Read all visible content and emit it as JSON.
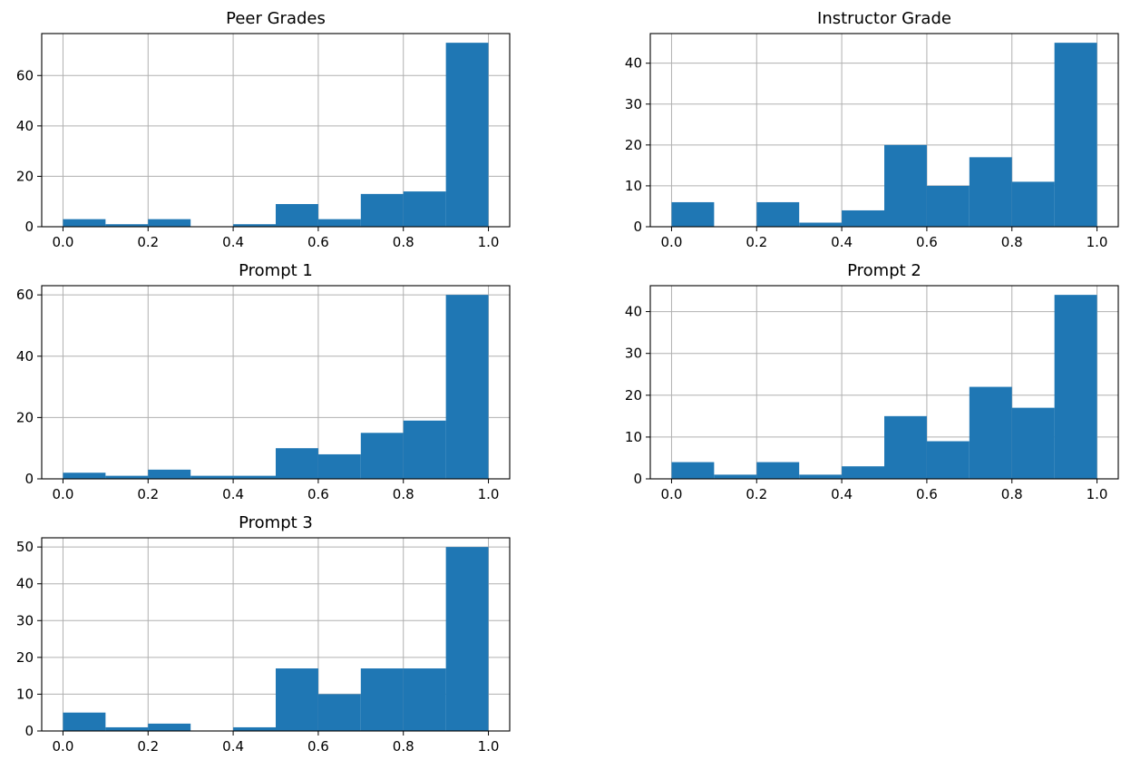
{
  "chart_data": [
    {
      "type": "bar",
      "title": "Peer Grades",
      "bin_edges": [
        0.0,
        0.1,
        0.2,
        0.3,
        0.4,
        0.5,
        0.6,
        0.7,
        0.8,
        0.9,
        1.0
      ],
      "values": [
        3,
        1,
        3,
        0,
        1,
        9,
        3,
        13,
        14,
        73
      ],
      "xlim": [
        -0.05,
        1.05
      ],
      "ylim": [
        0,
        76.65
      ],
      "xticks": [
        0.0,
        0.2,
        0.4,
        0.6,
        0.8,
        1.0
      ],
      "xtick_labels": [
        "0.0",
        "0.2",
        "0.4",
        "0.6",
        "0.8",
        "1.0"
      ],
      "yticks": [
        0,
        20,
        40,
        60
      ],
      "ytick_labels": [
        "0",
        "20",
        "40",
        "60"
      ],
      "grid": true,
      "color": "#1f77b4"
    },
    {
      "type": "bar",
      "title": "Instructor Grade",
      "bin_edges": [
        0.0,
        0.1,
        0.2,
        0.3,
        0.4,
        0.5,
        0.6,
        0.7,
        0.8,
        0.9,
        1.0
      ],
      "values": [
        6,
        0,
        6,
        1,
        4,
        20,
        10,
        17,
        11,
        45
      ],
      "xlim": [
        -0.05,
        1.05
      ],
      "ylim": [
        0,
        47.25
      ],
      "xticks": [
        0.0,
        0.2,
        0.4,
        0.6,
        0.8,
        1.0
      ],
      "xtick_labels": [
        "0.0",
        "0.2",
        "0.4",
        "0.6",
        "0.8",
        "1.0"
      ],
      "yticks": [
        0,
        10,
        20,
        30,
        40
      ],
      "ytick_labels": [
        "0",
        "10",
        "20",
        "30",
        "40"
      ],
      "grid": true,
      "color": "#1f77b4"
    },
    {
      "type": "bar",
      "title": "Prompt 1",
      "bin_edges": [
        0.0,
        0.1,
        0.2,
        0.3,
        0.4,
        0.5,
        0.6,
        0.7,
        0.8,
        0.9,
        1.0
      ],
      "values": [
        2,
        1,
        3,
        1,
        1,
        10,
        8,
        15,
        19,
        60
      ],
      "xlim": [
        -0.05,
        1.05
      ],
      "ylim": [
        0,
        63
      ],
      "xticks": [
        0.0,
        0.2,
        0.4,
        0.6,
        0.8,
        1.0
      ],
      "xtick_labels": [
        "0.0",
        "0.2",
        "0.4",
        "0.6",
        "0.8",
        "1.0"
      ],
      "yticks": [
        0,
        20,
        40,
        60
      ],
      "ytick_labels": [
        "0",
        "20",
        "40",
        "60"
      ],
      "grid": true,
      "color": "#1f77b4"
    },
    {
      "type": "bar",
      "title": "Prompt 2",
      "bin_edges": [
        0.0,
        0.1,
        0.2,
        0.3,
        0.4,
        0.5,
        0.6,
        0.7,
        0.8,
        0.9,
        1.0
      ],
      "values": [
        4,
        1,
        4,
        1,
        3,
        15,
        9,
        22,
        17,
        44
      ],
      "xlim": [
        -0.05,
        1.05
      ],
      "ylim": [
        0,
        46.2
      ],
      "xticks": [
        0.0,
        0.2,
        0.4,
        0.6,
        0.8,
        1.0
      ],
      "xtick_labels": [
        "0.0",
        "0.2",
        "0.4",
        "0.6",
        "0.8",
        "1.0"
      ],
      "yticks": [
        0,
        10,
        20,
        30,
        40
      ],
      "ytick_labels": [
        "0",
        "10",
        "20",
        "30",
        "40"
      ],
      "grid": true,
      "color": "#1f77b4"
    },
    {
      "type": "bar",
      "title": "Prompt 3",
      "bin_edges": [
        0.0,
        0.1,
        0.2,
        0.3,
        0.4,
        0.5,
        0.6,
        0.7,
        0.8,
        0.9,
        1.0
      ],
      "values": [
        5,
        1,
        2,
        0,
        1,
        17,
        10,
        17,
        17,
        50
      ],
      "xlim": [
        -0.05,
        1.05
      ],
      "ylim": [
        0,
        52.5
      ],
      "xticks": [
        0.0,
        0.2,
        0.4,
        0.6,
        0.8,
        1.0
      ],
      "xtick_labels": [
        "0.0",
        "0.2",
        "0.4",
        "0.6",
        "0.8",
        "1.0"
      ],
      "yticks": [
        0,
        10,
        20,
        30,
        40,
        50
      ],
      "ytick_labels": [
        "0",
        "10",
        "20",
        "30",
        "40",
        "50"
      ],
      "grid": true,
      "color": "#1f77b4"
    }
  ]
}
